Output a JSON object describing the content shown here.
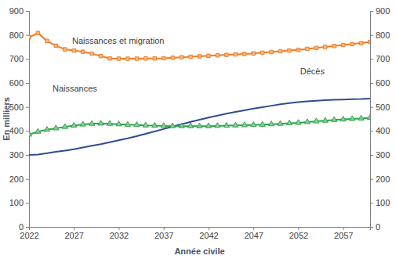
{
  "chart_data": {
    "type": "line",
    "x_label": "Année civile",
    "y_label": "En milliers",
    "x": [
      2022,
      2023,
      2024,
      2025,
      2026,
      2027,
      2028,
      2029,
      2030,
      2031,
      2032,
      2033,
      2034,
      2035,
      2036,
      2037,
      2038,
      2039,
      2040,
      2041,
      2042,
      2043,
      2044,
      2045,
      2046,
      2047,
      2048,
      2049,
      2050,
      2051,
      2052,
      2053,
      2054,
      2055,
      2056,
      2057,
      2058,
      2059,
      2060
    ],
    "xlim": [
      2022,
      2060
    ],
    "xticks": [
      2022,
      2027,
      2032,
      2037,
      2042,
      2047,
      2052,
      2057
    ],
    "ylim": [
      0,
      900
    ],
    "yticks": [
      0,
      100,
      200,
      300,
      400,
      500,
      600,
      700,
      800,
      900
    ],
    "y2lim": [
      0,
      900
    ],
    "y2ticks": [
      0,
      100,
      200,
      300,
      400,
      500,
      600,
      700,
      800,
      900
    ],
    "grid": false,
    "series": [
      {
        "name": "Naissances et migration",
        "color": "#f47c20",
        "marker": "square",
        "line_style": "solid",
        "values": [
          790,
          808,
          775,
          755,
          740,
          735,
          730,
          722,
          712,
          702,
          701,
          701,
          701,
          702,
          702,
          703,
          705,
          707,
          709,
          711,
          713,
          715,
          717,
          719,
          721,
          723,
          726,
          729,
          732,
          735,
          738,
          742,
          746,
          750,
          754,
          758,
          762,
          766,
          771
        ]
      },
      {
        "name": "Décès",
        "color": "#2e4d8f",
        "marker": "none",
        "line_style": "solid",
        "values": [
          300,
          302,
          307,
          313,
          318,
          324,
          331,
          338,
          345,
          353,
          361,
          369,
          378,
          388,
          398,
          408,
          418,
          428,
          438,
          447,
          456,
          464,
          472,
          479,
          486,
          493,
          499,
          505,
          511,
          516,
          520,
          523,
          526,
          528,
          530,
          531,
          532,
          533,
          535
        ]
      },
      {
        "name": "Naissances",
        "color": "#2ca44a",
        "marker": "triangle",
        "line_style": "solid",
        "values": [
          385,
          397,
          405,
          411,
          417,
          422,
          427,
          430,
          431,
          430,
          428,
          426,
          425,
          423,
          422,
          421,
          420,
          420,
          420,
          420,
          420,
          421,
          422,
          423,
          424,
          425,
          426,
          428,
          430,
          432,
          434,
          437,
          440,
          443,
          446,
          448,
          450,
          452,
          455
        ]
      }
    ]
  }
}
